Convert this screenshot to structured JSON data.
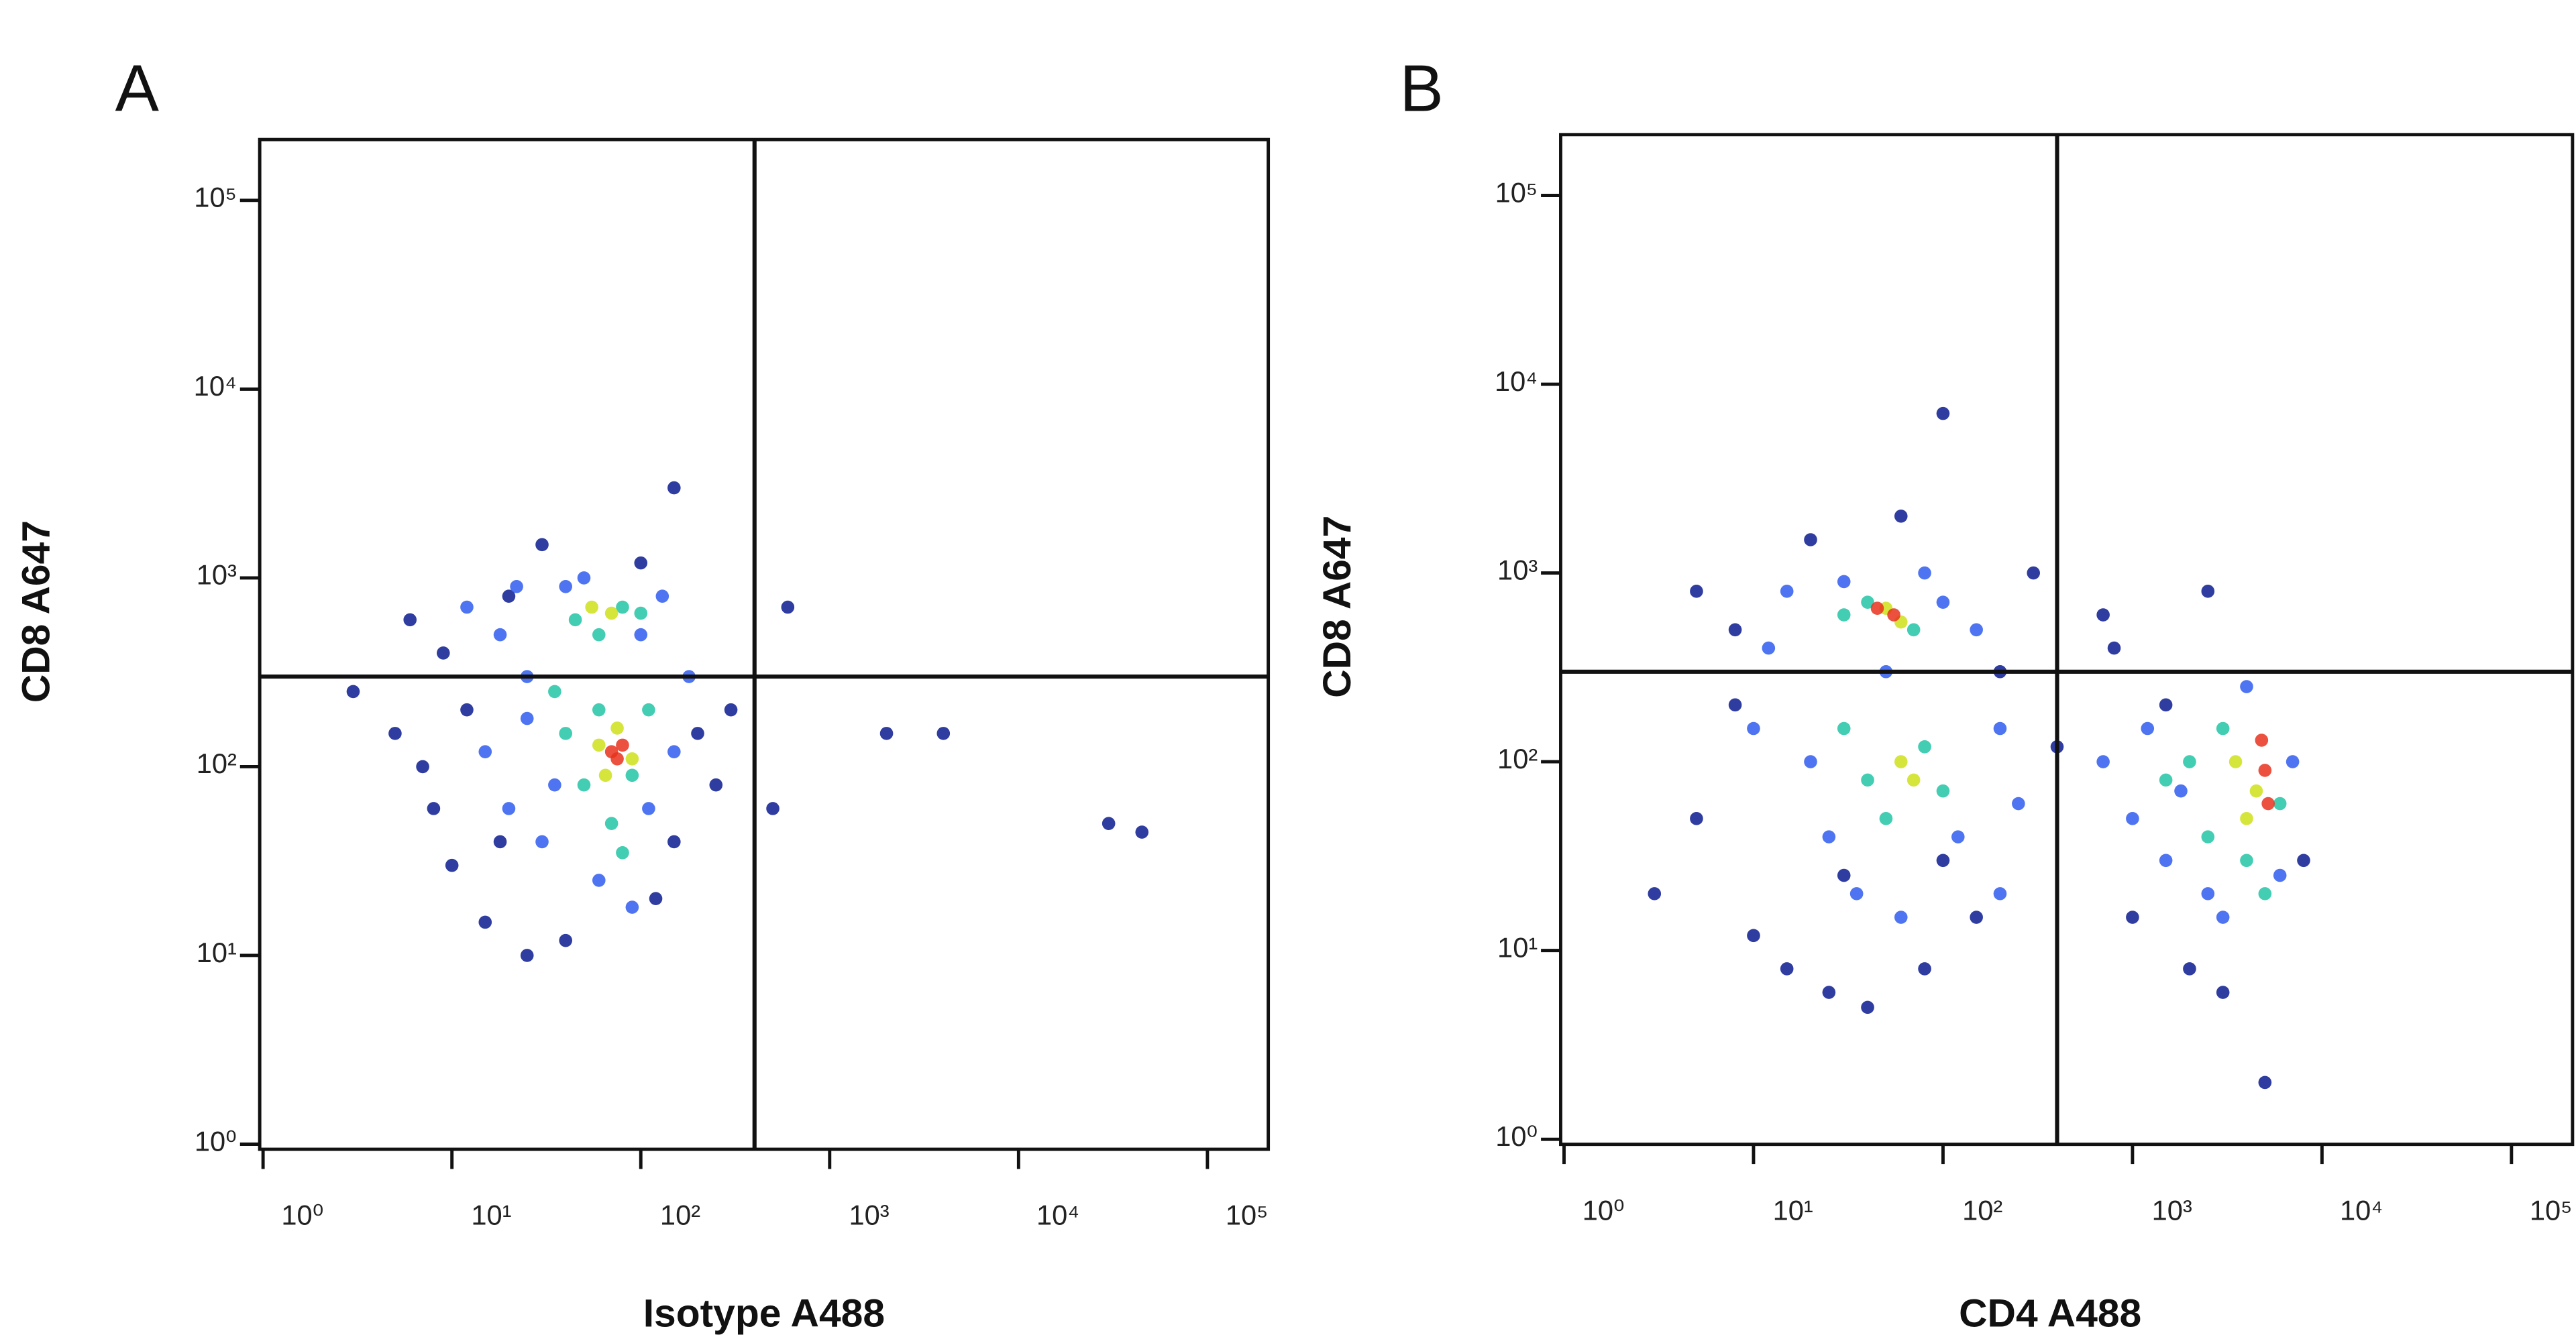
{
  "chart_data": [
    {
      "type": "scatter",
      "title": "A",
      "x_label": "Isotype A488",
      "y_label": "CD8 A647",
      "log_x": true,
      "log_y": true,
      "xlim": [
        0.96,
        210000
      ],
      "ylim": [
        0.94,
        210000
      ],
      "xticks": [
        {
          "value": 1,
          "label": "10⁰"
        },
        {
          "value": 10,
          "label": "10¹"
        },
        {
          "value": 100,
          "label": "10²"
        },
        {
          "value": 1000,
          "label": "10³"
        },
        {
          "value": 10000,
          "label": "10⁴"
        },
        {
          "value": 100000,
          "label": "10⁵"
        }
      ],
      "yticks": [
        {
          "value": 1,
          "label": "10⁰"
        },
        {
          "value": 10,
          "label": "10¹"
        },
        {
          "value": 100,
          "label": "10²"
        },
        {
          "value": 1000,
          "label": "10³"
        },
        {
          "value": 10000,
          "label": "10⁴"
        },
        {
          "value": 100000,
          "label": "10⁵"
        }
      ],
      "gates": {
        "x": 400,
        "y": 300
      },
      "series": [
        {
          "color": "#0b1a8f",
          "x": [
            5,
            8,
            10,
            12,
            15,
            6,
            20,
            25,
            40,
            150,
            200,
            250,
            120,
            9,
            300,
            30,
            100,
            3,
            18,
            7,
            500,
            2000,
            30000,
            600,
            4000,
            45000,
            150
          ],
          "values": [
            150,
            60,
            30,
            200,
            15,
            600,
            800,
            10,
            12,
            40,
            150,
            80,
            20,
            400,
            200,
            1500,
            1200,
            250,
            40,
            100,
            60,
            150,
            50,
            700,
            150,
            45,
            3000
          ]
        },
        {
          "color": "#2f5cf0",
          "x": [
            15,
            20,
            25,
            30,
            12,
            18,
            40,
            100,
            150,
            180,
            60,
            90,
            35,
            110,
            25,
            130,
            50,
            22
          ],
          "values": [
            120,
            60,
            300,
            40,
            700,
            500,
            900,
            500,
            120,
            300,
            25,
            18,
            80,
            60,
            180,
            800,
            1000,
            900
          ]
        },
        {
          "color": "#22c4a4",
          "x": [
            40,
            50,
            60,
            90,
            110,
            70,
            45,
            80,
            100,
            60,
            35,
            80
          ],
          "values": [
            150,
            80,
            200,
            90,
            200,
            50,
            600,
            700,
            650,
            500,
            250,
            35
          ]
        },
        {
          "color": "#cfe01a",
          "x": [
            60,
            75,
            90,
            65,
            70,
            55
          ],
          "values": [
            130,
            160,
            110,
            90,
            650,
            700
          ]
        },
        {
          "color": "#e8321c",
          "x": [
            70,
            80,
            75
          ],
          "values": [
            120,
            130,
            110
          ]
        }
      ]
    },
    {
      "type": "scatter",
      "title": "B",
      "x_label": "CD4 A488",
      "y_label": "CD8 A647",
      "log_x": true,
      "log_y": true,
      "xlim": [
        0.96,
        210000
      ],
      "ylim": [
        0.94,
        210000
      ],
      "xticks": [
        {
          "value": 1,
          "label": "10⁰"
        },
        {
          "value": 10,
          "label": "10¹"
        },
        {
          "value": 100,
          "label": "10²"
        },
        {
          "value": 1000,
          "label": "10³"
        },
        {
          "value": 10000,
          "label": "10⁴"
        },
        {
          "value": 100000,
          "label": "10⁵"
        }
      ],
      "yticks": [
        {
          "value": 1,
          "label": "10⁰"
        },
        {
          "value": 10,
          "label": "10¹"
        },
        {
          "value": 100,
          "label": "10²"
        },
        {
          "value": 1000,
          "label": "10³"
        },
        {
          "value": 10000,
          "label": "10⁴"
        },
        {
          "value": 100000,
          "label": "10⁵"
        }
      ],
      "gates": {
        "x": 400,
        "y": 300
      },
      "series": [
        {
          "color": "#0b1a8f",
          "x": [
            3,
            5,
            8,
            10,
            15,
            25,
            40,
            80,
            150,
            5,
            8,
            20,
            60,
            100,
            200,
            300,
            800,
            1000,
            2000,
            3000,
            5000,
            1500,
            700,
            8000,
            400,
            2500,
            30,
            100
          ],
          "values": [
            20,
            50,
            200,
            12,
            8,
            6,
            5,
            8,
            15,
            800,
            500,
            1500,
            2000,
            7000,
            300,
            1000,
            400,
            15,
            8,
            6,
            2,
            200,
            600,
            30,
            120,
            800,
            25,
            30
          ]
        },
        {
          "color": "#2f5cf0",
          "x": [
            10,
            12,
            15,
            20,
            25,
            35,
            60,
            120,
            200,
            250,
            30,
            80,
            100,
            150,
            700,
            1000,
            1200,
            1500,
            2500,
            3000,
            6000,
            7000,
            4000,
            1800,
            50,
            200
          ],
          "values": [
            150,
            400,
            800,
            100,
            40,
            20,
            15,
            40,
            150,
            60,
            900,
            1000,
            700,
            500,
            100,
            50,
            150,
            30,
            20,
            15,
            25,
            100,
            250,
            70,
            300,
            20
          ]
        },
        {
          "color": "#22c4a4",
          "x": [
            30,
            40,
            70,
            30,
            50,
            80,
            100,
            40,
            2000,
            2500,
            1500,
            3000,
            4000,
            6000,
            5000
          ],
          "values": [
            600,
            700,
            500,
            150,
            50,
            120,
            70,
            80,
            100,
            40,
            80,
            150,
            30,
            60,
            20
          ]
        },
        {
          "color": "#cfe01a",
          "x": [
            50,
            60,
            60,
            70,
            3500,
            4500,
            4000
          ],
          "values": [
            650,
            550,
            100,
            80,
            100,
            70,
            50
          ]
        },
        {
          "color": "#e8321c",
          "x": [
            55,
            45,
            5000,
            5200,
            4800
          ],
          "values": [
            600,
            650,
            90,
            60,
            130
          ]
        }
      ]
    }
  ]
}
